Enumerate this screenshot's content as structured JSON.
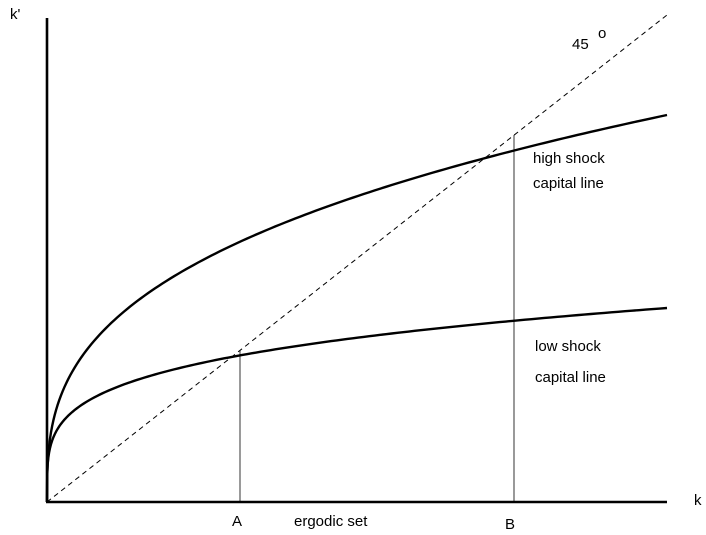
{
  "axes": {
    "y_label": "k'",
    "x_label": "k"
  },
  "diagonal": {
    "label": "45",
    "degree_symbol": "o",
    "style": "dashed"
  },
  "curves": {
    "high": {
      "label_line1": "high shock",
      "label_line2": "capital line"
    },
    "low": {
      "label_line1": "low shock",
      "label_line2": "capital line"
    }
  },
  "points": {
    "a": "A",
    "b": "B"
  },
  "interval_label": "ergodic set",
  "colors": {
    "stroke": "#000000",
    "background": "#ffffff"
  }
}
